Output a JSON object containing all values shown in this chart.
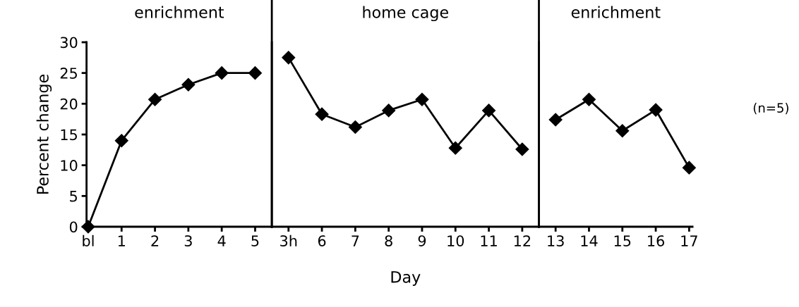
{
  "chart_data": [
    {
      "type": "line",
      "title": "enrichment",
      "ylabel": "Percent change",
      "categories": [
        "bl",
        "1",
        "2",
        "3",
        "4",
        "5"
      ],
      "series": [
        {
          "color": "#000000",
          "values": [
            0,
            14,
            20.7,
            23.1,
            25,
            25
          ]
        }
      ],
      "ylim": [
        0,
        30
      ],
      "yticks": [
        0,
        5,
        10,
        15,
        20,
        25,
        30
      ],
      "marker": "diamond",
      "line_style": "solid"
    },
    {
      "type": "line",
      "title": "home cage",
      "xlabel": "Day",
      "categories": [
        "3h",
        "6",
        "7",
        "8",
        "9",
        "10",
        "11",
        "12"
      ],
      "series": [
        {
          "color": "#000000",
          "values": [
            27.5,
            18.3,
            16.2,
            18.9,
            20.7,
            12.8,
            18.9,
            12.6
          ]
        }
      ],
      "ylim": [
        0,
        30
      ],
      "tick_labels": "x",
      "marker": "diamond",
      "line_style": "solid"
    },
    {
      "type": "line",
      "title": "enrichment",
      "categories": [
        "13",
        "14",
        "15",
        "16",
        "17"
      ],
      "series": [
        {
          "color": "#000000",
          "values": [
            17.4,
            20.7,
            15.6,
            19.0,
            9.6
          ]
        }
      ],
      "ylim": [
        0,
        30
      ],
      "tick_labels": "x",
      "annotations": [
        "(n=5)"
      ],
      "marker": "diamond",
      "line_style": "solid"
    }
  ]
}
